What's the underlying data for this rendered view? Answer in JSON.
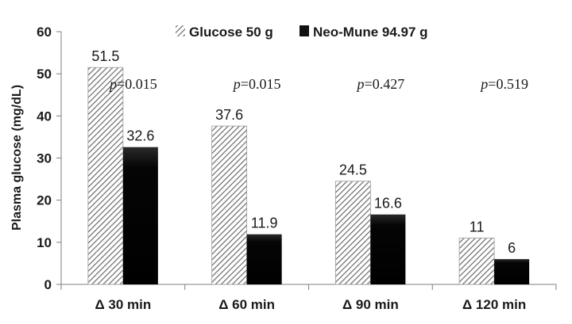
{
  "chart_data": {
    "type": "bar",
    "ylabel": "Plasma  glucose (mg/dL)",
    "ylim": [
      0,
      60
    ],
    "yticks": [
      0,
      10,
      20,
      30,
      40,
      50,
      60
    ],
    "categories": [
      "Δ 30 min",
      "Δ 60 min",
      "Δ 90 min",
      "Δ 120 min"
    ],
    "series": [
      {
        "name": "Glucose 50 g",
        "values": [
          51.5,
          37.6,
          24.5,
          11
        ],
        "labels": [
          "51.5",
          "37.6",
          "24.5",
          "11"
        ],
        "pattern": "diagonal-hatch"
      },
      {
        "name": "Neo-Mune 94.97 g",
        "values": [
          32.6,
          11.9,
          16.6,
          6
        ],
        "labels": [
          "32.6",
          "11.9",
          "16.6",
          "6"
        ],
        "color": "#111111"
      }
    ],
    "annotations": [
      {
        "prefix": "p",
        "text": "=0.015"
      },
      {
        "prefix": "p",
        "text": "=0.015"
      },
      {
        "prefix": "p",
        "text": "=0.427"
      },
      {
        "prefix": "p",
        "text": "=0.519"
      }
    ],
    "legend_position": "top"
  }
}
